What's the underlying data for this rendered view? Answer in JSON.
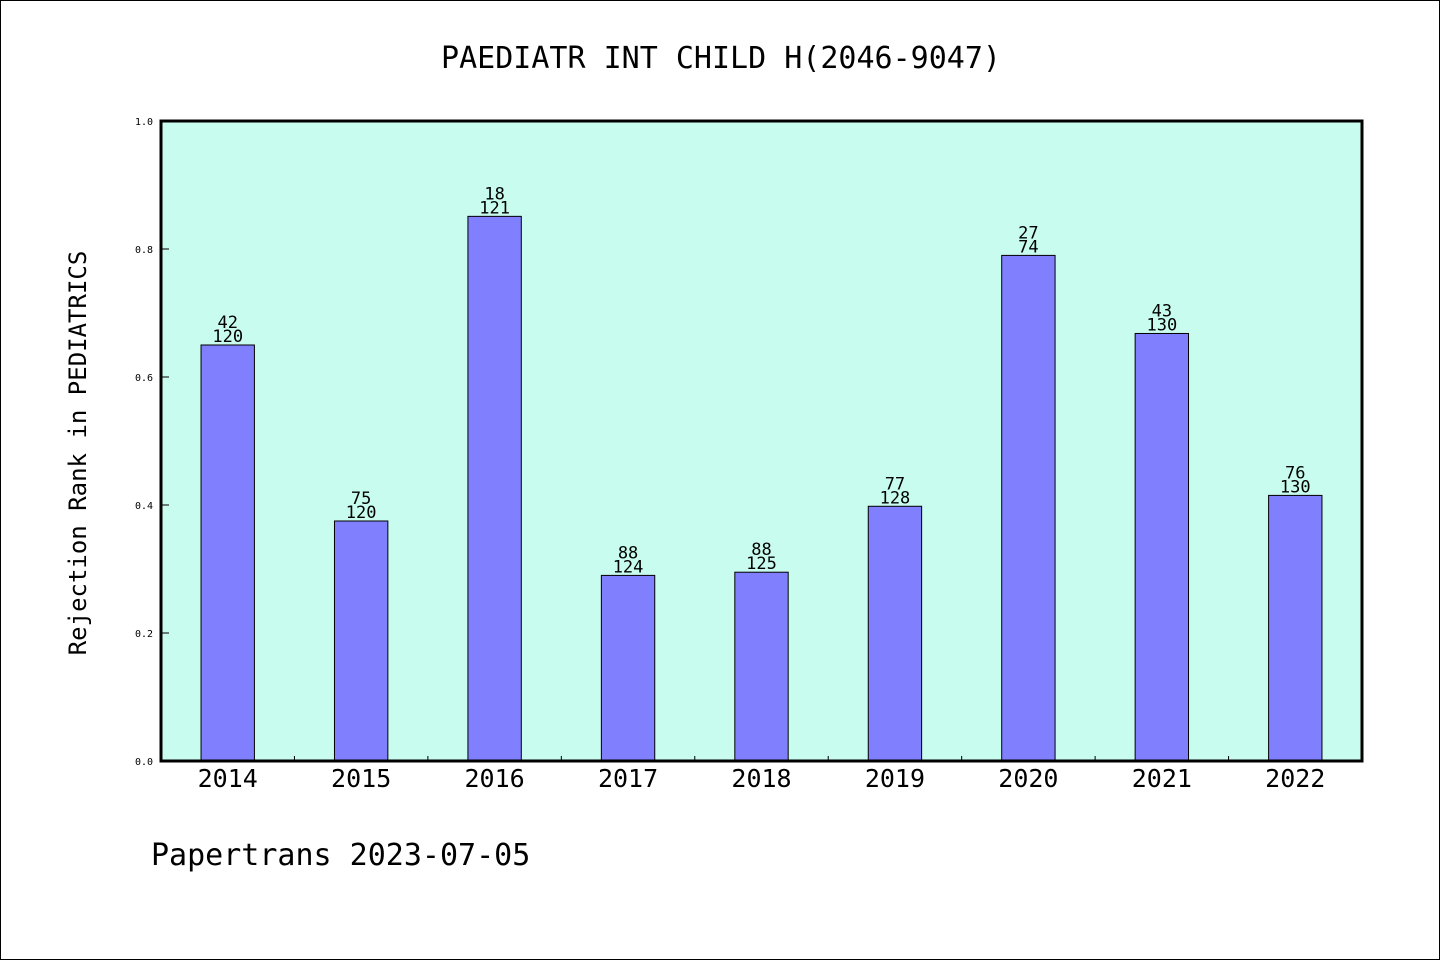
{
  "chart_data": {
    "type": "bar",
    "title": "PAEDIATR INT CHILD H(2046-9047)",
    "xlabel": "",
    "ylabel": "Rejection Rank in PEDIATRICS",
    "categories": [
      "2014",
      "2015",
      "2016",
      "2017",
      "2018",
      "2019",
      "2020",
      "2021",
      "2022"
    ],
    "values": [
      0.65,
      0.375,
      0.851,
      0.29,
      0.295,
      0.398,
      0.79,
      0.668,
      0.415
    ],
    "bar_labels_top": [
      "42",
      "75",
      "18",
      "88",
      "88",
      "77",
      "27",
      "43",
      "76"
    ],
    "bar_labels_bottom": [
      "120",
      "120",
      "121",
      "124",
      "125",
      "128",
      "74",
      "130",
      "130"
    ],
    "ylim": [
      0,
      1.0
    ],
    "yticks": [
      "0.0",
      "0.2",
      "0.4",
      "0.6",
      "0.8",
      "1.0"
    ],
    "grid": false,
    "colors": {
      "plot_background": "#c8fcee",
      "bar_fill": "#8080ff",
      "bar_edge": "#000000"
    }
  },
  "footer": {
    "text": "Papertrans 2023-07-05"
  }
}
